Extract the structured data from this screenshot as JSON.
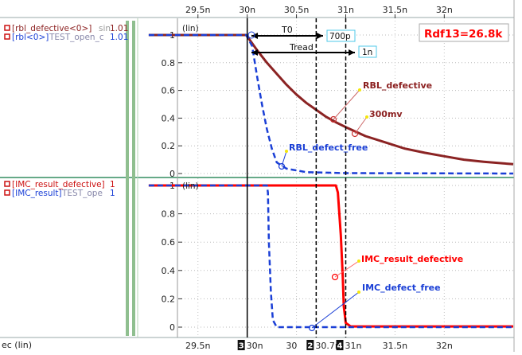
{
  "chart_data": [
    {
      "type": "line",
      "panel": "top",
      "yscale_label": "(lin)",
      "ylim": [
        0,
        1.05
      ],
      "yticks": [
        0,
        0.2,
        0.4,
        0.6,
        0.8,
        1
      ],
      "legend": [
        {
          "name": "[rbl_defective<0>]",
          "suffix": "sin",
          "value": "1.01",
          "color": "#8b1f1f"
        },
        {
          "name": "[rbl<0>]",
          "suffix": "TEST_open_c",
          "value": "1.01",
          "color": "#1a3fd6"
        }
      ],
      "series": [
        {
          "name": "rbl_defective",
          "color": "#8b2323",
          "style": "solid",
          "points": [
            [
              29.0,
              1.0
            ],
            [
              29.99,
              1.0
            ],
            [
              30.02,
              0.97
            ],
            [
              30.1,
              0.89
            ],
            [
              30.2,
              0.8
            ],
            [
              30.3,
              0.72
            ],
            [
              30.4,
              0.64
            ],
            [
              30.5,
              0.57
            ],
            [
              30.6,
              0.51
            ],
            [
              30.7,
              0.46
            ],
            [
              30.8,
              0.41
            ],
            [
              30.9,
              0.37
            ],
            [
              31.0,
              0.335
            ],
            [
              31.2,
              0.27
            ],
            [
              31.4,
              0.225
            ],
            [
              31.6,
              0.18
            ],
            [
              31.8,
              0.15
            ],
            [
              32.0,
              0.125
            ],
            [
              32.2,
              0.1
            ],
            [
              32.4,
              0.085
            ],
            [
              32.6,
              0.073
            ],
            [
              32.7,
              0.068
            ]
          ]
        },
        {
          "name": "rbl",
          "color": "#1a3fd6",
          "style": "dashed",
          "points": [
            [
              29.0,
              1.0
            ],
            [
              29.99,
              1.0
            ],
            [
              30.05,
              0.92
            ],
            [
              30.1,
              0.7
            ],
            [
              30.15,
              0.5
            ],
            [
              30.2,
              0.32
            ],
            [
              30.25,
              0.18
            ],
            [
              30.3,
              0.08
            ],
            [
              30.4,
              0.035
            ],
            [
              30.6,
              0.01
            ],
            [
              31.0,
              0.003
            ],
            [
              32.7,
              0.0
            ]
          ]
        }
      ],
      "annotations": [
        {
          "text": "Rdf13=26.8k",
          "color": "#ff0000",
          "boxed": true
        },
        {
          "text": "T0"
        },
        {
          "text": "Tread"
        },
        {
          "text": "700p",
          "boxed": true
        },
        {
          "text": "1n",
          "boxed": true
        },
        {
          "text": "RBL_defective",
          "color": "#8b1f1f",
          "x": 30.85,
          "y": 0.38
        },
        {
          "text": "300mv",
          "color": "#8b1f1f",
          "x": 31.0,
          "y": 0.3
        },
        {
          "text": "RBL_defect_free",
          "color": "#1a3fd6",
          "x": 30.35,
          "y": 0.06
        }
      ]
    },
    {
      "type": "line",
      "panel": "bottom",
      "yscale_label": "(lin)",
      "ylim": [
        0,
        1.05
      ],
      "yticks": [
        0,
        0.2,
        0.4,
        0.6,
        0.8,
        1
      ],
      "legend": [
        {
          "name": "[IMC_result_defective]",
          "suffix": "",
          "value": "1",
          "color": "#cc1010"
        },
        {
          "name": "[IMC_result]",
          "suffix": "TEST_ope",
          "value": "1",
          "color": "#1a3fd6"
        }
      ],
      "series": [
        {
          "name": "IMC_result_defective",
          "color": "#ff0000",
          "style": "solid",
          "points": [
            [
              29.0,
              1.0
            ],
            [
              30.9,
              1.0
            ],
            [
              30.92,
              0.95
            ],
            [
              30.95,
              0.65
            ],
            [
              30.97,
              0.35
            ],
            [
              30.98,
              0.15
            ],
            [
              31.0,
              0.03
            ],
            [
              31.05,
              0.005
            ],
            [
              32.7,
              0.005
            ]
          ]
        },
        {
          "name": "IMC_result",
          "color": "#1a3fd6",
          "style": "dashed",
          "points": [
            [
              29.0,
              1.0
            ],
            [
              30.2,
              1.0
            ],
            [
              30.21,
              0.95
            ],
            [
              30.22,
              0.6
            ],
            [
              30.24,
              0.25
            ],
            [
              30.26,
              0.05
            ],
            [
              30.3,
              0.0
            ],
            [
              32.7,
              0.0
            ]
          ]
        }
      ],
      "annotations": [
        {
          "text": "IMC_result_defective",
          "color": "#ff0000",
          "x": 30.95,
          "y": 0.37
        },
        {
          "text": "IMC_defect_free",
          "color": "#1a3fd6",
          "x": 30.7,
          "y": 0.0
        }
      ]
    }
  ],
  "x_axis": {
    "label": "ec (lin)",
    "xlim": [
      29.3,
      32.7
    ],
    "tick_labels": [
      {
        "label": "29.5n",
        "x": 29.5
      },
      {
        "label": "30n",
        "x": 30.0
      },
      {
        "label": "30.5n",
        "x": 30.5
      },
      {
        "label": "31n",
        "x": 31.0
      },
      {
        "label": "31.5n",
        "x": 31.5
      },
      {
        "label": "32n",
        "x": 32.0
      }
    ],
    "bottom_labels": [
      {
        "label": "29.5n",
        "x": 29.5
      },
      {
        "label": "30n",
        "x": 30.0,
        "marker": "3"
      },
      {
        "label": "30",
        "x": 30.45
      },
      {
        "label": "30.7n",
        "x": 30.7,
        "marker": "2"
      },
      {
        "label": "31n",
        "x": 31.0,
        "marker": "4"
      },
      {
        "label": "31.5n",
        "x": 31.5
      },
      {
        "label": "32n",
        "x": 32.0
      }
    ],
    "cursors": [
      {
        "marker": "3",
        "x": 30.0,
        "style": "solid"
      },
      {
        "marker": "2",
        "x": 30.7,
        "style": "dashed"
      },
      {
        "marker": "4",
        "x": 31.0,
        "style": "dashed"
      }
    ]
  }
}
